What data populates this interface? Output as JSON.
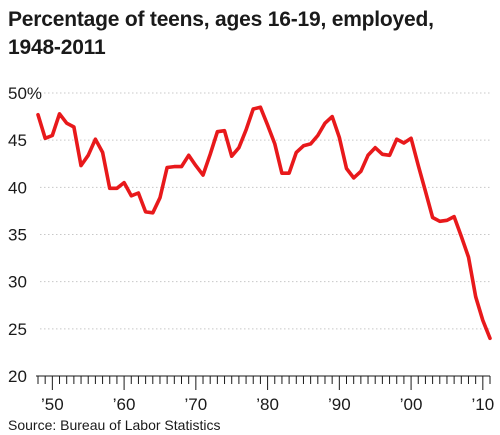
{
  "chart_data": {
    "type": "line",
    "title": "Percentage of teens, ages 16-19, employed, 1948-2011",
    "source": "Source: Bureau of Labor Statistics",
    "xlabel": "",
    "ylabel": "",
    "xlim": [
      1948,
      2011
    ],
    "ylim": [
      20,
      50
    ],
    "yticks": [
      {
        "value": 50,
        "label": "50%"
      },
      {
        "value": 45,
        "label": "45"
      },
      {
        "value": 40,
        "label": "40"
      },
      {
        "value": 35,
        "label": "35"
      },
      {
        "value": 30,
        "label": "30"
      },
      {
        "value": 25,
        "label": "25"
      },
      {
        "value": 20,
        "label": "20"
      }
    ],
    "xticks": [
      {
        "value": 1950,
        "label": "’50"
      },
      {
        "value": 1960,
        "label": "’60"
      },
      {
        "value": 1970,
        "label": "’70"
      },
      {
        "value": 1980,
        "label": "’80"
      },
      {
        "value": 1990,
        "label": "’90"
      },
      {
        "value": 2000,
        "label": "’00"
      },
      {
        "value": 2010,
        "label": "’10"
      }
    ],
    "grid": "horizontal",
    "line_color": "#e8191b",
    "series": [
      {
        "x": [
          1948,
          1949,
          1950,
          1951,
          1952,
          1953,
          1954,
          1955,
          1956,
          1957,
          1958,
          1959,
          1960,
          1961,
          1962,
          1963,
          1964,
          1965,
          1966,
          1967,
          1968,
          1969,
          1970,
          1971,
          1972,
          1973,
          1974,
          1975,
          1976,
          1977,
          1978,
          1979,
          1980,
          1981,
          1982,
          1983,
          1984,
          1985,
          1986,
          1987,
          1988,
          1989,
          1990,
          1991,
          1992,
          1993,
          1994,
          1995,
          1996,
          1997,
          1998,
          1999,
          2000,
          2001,
          2002,
          2003,
          2004,
          2005,
          2006,
          2007,
          2008,
          2009,
          2010,
          2011
        ],
        "y": [
          47.7,
          45.2,
          45.5,
          47.8,
          46.8,
          46.4,
          42.3,
          43.4,
          45.1,
          43.7,
          39.9,
          39.9,
          40.5,
          39.1,
          39.4,
          37.4,
          37.3,
          38.9,
          42.1,
          42.2,
          42.2,
          43.4,
          42.3,
          41.3,
          43.5,
          45.9,
          46.0,
          43.3,
          44.2,
          46.1,
          48.3,
          48.5,
          46.6,
          44.6,
          41.5,
          41.5,
          43.7,
          44.4,
          44.6,
          45.5,
          46.8,
          47.5,
          45.3,
          42.0,
          41.0,
          41.7,
          43.4,
          44.2,
          43.5,
          43.4,
          45.1,
          44.7,
          45.2,
          42.3,
          39.6,
          36.8,
          36.4,
          36.5,
          36.9,
          34.8,
          32.6,
          28.4,
          25.9,
          24.0
        ]
      }
    ]
  }
}
